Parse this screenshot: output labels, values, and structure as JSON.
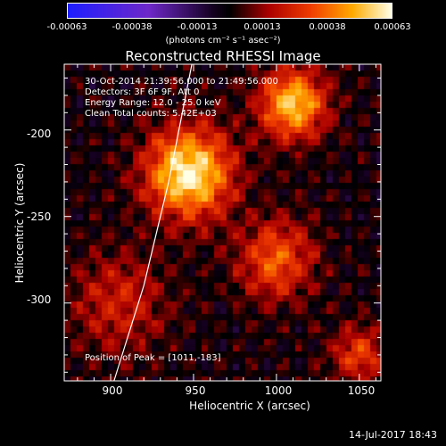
{
  "chart_data": {
    "type": "heatmap",
    "title": "Reconstructed RHESSI Image",
    "xlabel": "Heliocentric X (arcsec)",
    "ylabel": "Heliocentric Y (arcsec)",
    "x_ticks": [
      "900",
      "950",
      "1000",
      "1050"
    ],
    "y_ticks": [
      "-200",
      "-250",
      "-300"
    ],
    "xlim": [
      872,
      1063
    ],
    "ylim": [
      -345,
      -162
    ],
    "colorbar": {
      "ticks": [
        "-0.00063",
        "-0.00038",
        "-0.00013",
        "0.00013",
        "0.00038",
        "0.00063"
      ],
      "units": "(photons cm⁻² s⁻¹ asec⁻²)",
      "range": [
        -0.00063,
        0.00063
      ]
    },
    "annotations": [
      "30-Oct-2014 21:39:56.000 to 21:49:56.000",
      "Detectors: 3F 6F 9F, Att 0",
      "Energy Range: 12.0 - 25.0 keV",
      "Clean     Total counts: 5.42E+03"
    ],
    "peak_label": "Position of Peak = [1011,-183]",
    "peak": [
      1011,
      -183
    ],
    "sources": [
      {
        "x": 947,
        "y": -225,
        "amp": 1.0,
        "sigma": 18
      },
      {
        "x": 1010,
        "y": -185,
        "amp": 0.85,
        "sigma": 14
      },
      {
        "x": 1000,
        "y": -275,
        "amp": 0.55,
        "sigma": 16
      },
      {
        "x": 905,
        "y": -300,
        "amp": 0.35,
        "sigma": 20
      },
      {
        "x": 1050,
        "y": -330,
        "amp": 0.45,
        "sigma": 12
      }
    ],
    "limb_curve": [
      [
        949,
        -162
      ],
      [
        935,
        -230
      ],
      [
        920,
        -290
      ],
      [
        902,
        -345
      ]
    ]
  },
  "footer": {
    "timestamp": "14-Jul-2017 18:43"
  }
}
